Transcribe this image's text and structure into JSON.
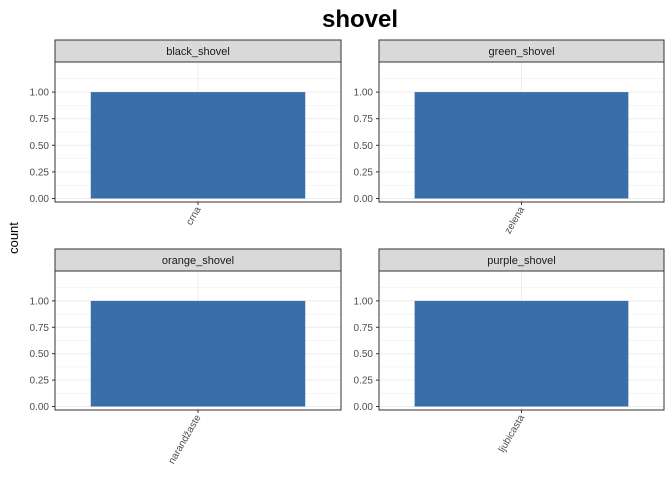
{
  "chart_data": {
    "type": "bar",
    "title": "shovel",
    "ylabel": "count",
    "xlabel": "",
    "ylim": [
      0,
      1.25
    ],
    "yticks": [
      "0.00",
      "0.25",
      "0.50",
      "0.75",
      "1.00"
    ],
    "bar_color": "#3a6ea8",
    "grid": true,
    "facets": [
      {
        "strip": "black_shovel",
        "categories": [
          "crna"
        ],
        "values": [
          1
        ]
      },
      {
        "strip": "green_shovel",
        "categories": [
          "zelena"
        ],
        "values": [
          1
        ]
      },
      {
        "strip": "orange_shovel",
        "categories": [
          "narandžaste"
        ],
        "values": [
          1
        ]
      },
      {
        "strip": "purple_shovel",
        "categories": [
          "ljubicasta"
        ],
        "values": [
          1
        ]
      }
    ]
  }
}
